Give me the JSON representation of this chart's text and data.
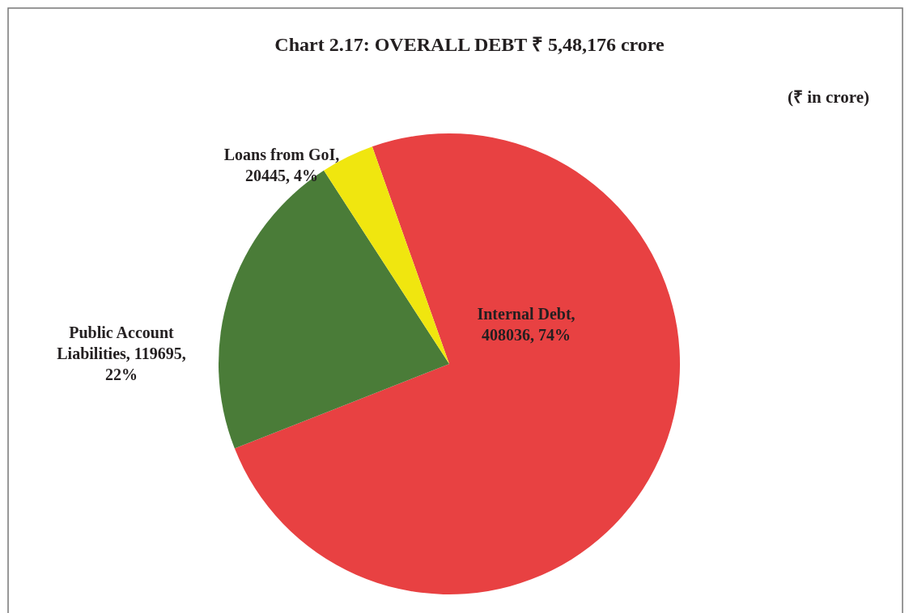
{
  "chart_data": {
    "type": "pie",
    "title": "Chart 2.17: OVERALL DEBT ₹ 5,48,176 crore",
    "subtitle": "(₹  in crore)",
    "categories": [
      "Internal Debt",
      "Public Account Liabilities",
      "Loans from GoI"
    ],
    "values": [
      408036,
      119695,
      20445
    ],
    "colors": [
      "#e84142",
      "#4a7c38",
      "#f0e60f"
    ],
    "value_labels": [
      ", 408036, 74%",
      ", 119695, 22%",
      ", 20445, 4%"
    ]
  }
}
